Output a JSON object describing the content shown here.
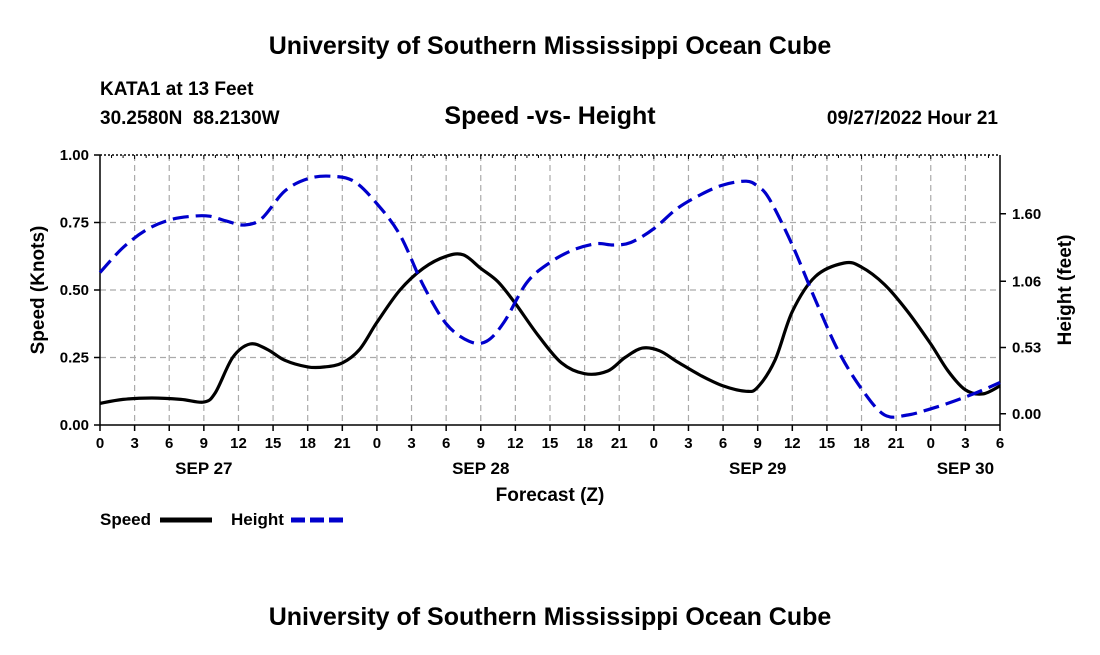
{
  "header": {
    "title": "University of Southern Mississippi Ocean Cube",
    "station": "KATA1 at 13 Feet",
    "coords": "30.2580N  88.2130W",
    "subtitle": "Speed -vs- Height",
    "issued": "09/27/2022 Hour 21"
  },
  "footer": {
    "title": "University of Southern Mississippi Ocean Cube"
  },
  "colors": {
    "speed": "#000000",
    "height": "#0000cc",
    "grid": "#aaaaaa"
  },
  "chart_data": {
    "type": "line",
    "x_unit": "hours since SEP 27 00Z",
    "xlim": [
      0,
      78
    ],
    "xticks": [
      0,
      3,
      6,
      9,
      12,
      15,
      18,
      21,
      24,
      27,
      30,
      33,
      36,
      39,
      42,
      45,
      48,
      51,
      54,
      57,
      60,
      63,
      66,
      69,
      72,
      75,
      78
    ],
    "xtick_labels": [
      "0",
      "3",
      "6",
      "9",
      "12",
      "15",
      "18",
      "21",
      "0",
      "3",
      "6",
      "9",
      "12",
      "15",
      "18",
      "21",
      "0",
      "3",
      "6",
      "9",
      "12",
      "15",
      "18",
      "21",
      "0",
      "3",
      "6"
    ],
    "date_labels": [
      {
        "x": 9,
        "label": "SEP 27"
      },
      {
        "x": 33,
        "label": "SEP 28"
      },
      {
        "x": 57,
        "label": "SEP 29"
      },
      {
        "x": 75,
        "label": "SEP 30"
      }
    ],
    "xlabel": "Forecast (Z)",
    "ylabel": "Speed (Knots)",
    "ylim": [
      0,
      1.0
    ],
    "yticks": [
      "0.00",
      "0.25",
      "0.50",
      "0.75",
      "1.00"
    ],
    "y2label": "Height (feet)",
    "y2lim": [
      -0.09,
      2.07
    ],
    "y2ticks": [
      "0.00",
      "0.53",
      "1.06",
      "1.60"
    ],
    "series": [
      {
        "name": "Speed",
        "axis": "left",
        "style": "solid",
        "x": [
          0,
          2,
          4.5,
          7,
          9,
          10,
          11.5,
          13,
          14.5,
          16,
          18,
          19.5,
          21,
          22.5,
          24,
          26,
          28,
          30,
          31.5,
          33,
          34.5,
          36,
          38,
          40,
          42,
          44,
          45.5,
          47,
          48.5,
          50,
          52,
          54,
          56,
          57,
          58.5,
          60,
          62,
          64.5,
          66,
          68,
          70,
          72,
          73.5,
          75,
          76.5,
          78
        ],
        "values": [
          0.08,
          0.095,
          0.1,
          0.095,
          0.085,
          0.12,
          0.25,
          0.3,
          0.28,
          0.24,
          0.215,
          0.215,
          0.23,
          0.28,
          0.38,
          0.5,
          0.58,
          0.625,
          0.63,
          0.58,
          0.53,
          0.45,
          0.33,
          0.23,
          0.19,
          0.2,
          0.25,
          0.285,
          0.275,
          0.235,
          0.185,
          0.145,
          0.125,
          0.14,
          0.24,
          0.42,
          0.55,
          0.6,
          0.585,
          0.52,
          0.42,
          0.3,
          0.2,
          0.13,
          0.115,
          0.145
        ]
      },
      {
        "name": "Height",
        "axis": "right",
        "style": "dashed",
        "x": [
          0,
          2,
          4,
          6,
          8,
          9.5,
          11,
          12.5,
          14,
          16,
          18,
          20,
          22,
          24,
          26,
          28,
          30,
          32,
          33.5,
          35,
          37,
          39,
          41,
          43,
          44.5,
          46,
          48,
          50,
          52,
          54,
          56,
          57,
          58,
          60,
          62,
          64,
          66,
          68,
          70,
          72,
          74,
          76,
          78
        ],
        "values": [
          1.13,
          1.33,
          1.47,
          1.55,
          1.58,
          1.58,
          1.54,
          1.51,
          1.56,
          1.78,
          1.88,
          1.9,
          1.86,
          1.68,
          1.43,
          1.03,
          0.72,
          0.58,
          0.58,
          0.73,
          1.05,
          1.21,
          1.31,
          1.36,
          1.35,
          1.37,
          1.48,
          1.64,
          1.75,
          1.83,
          1.86,
          1.82,
          1.72,
          1.35,
          0.91,
          0.5,
          0.2,
          -0.01,
          -0.01,
          0.04,
          0.1,
          0.17,
          0.25
        ]
      }
    ]
  },
  "legend": {
    "items": [
      {
        "label": "Speed",
        "color": "#000000",
        "style": "solid"
      },
      {
        "label": "Height",
        "color": "#0000cc",
        "style": "dashed"
      }
    ]
  }
}
